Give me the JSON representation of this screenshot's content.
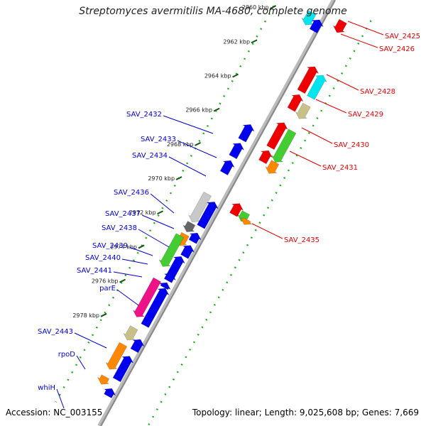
{
  "title": "Streptomyces avermitilis MA-4680, complete genome",
  "accession": "Accession: NC_003155",
  "summary": "Topology: linear; Length: 9,025,608 bp; Genes: 7,669",
  "ticks": [
    "2960 kbp",
    "2962 kbp",
    "2964 kbp",
    "2966 kbp",
    "2968 kbp",
    "2970 kbp",
    "2972 kbp",
    "2974 kbp",
    "2976 kbp",
    "2978 kbp"
  ],
  "labels_left": [
    "SAV_2432",
    "SAV_2433",
    "SAV_2434",
    "SAV_2436",
    "SAV_2437",
    "SAV_2438",
    "SAV_2439",
    "SAV_2440",
    "SAV_2441",
    "parE",
    "SAV_2443",
    "rpoD",
    "whiH"
  ],
  "labels_right": [
    "SAV_2425",
    "SAV_2426",
    "SAV_2428",
    "SAV_2429",
    "SAV_2430",
    "SAV_2431",
    "SAV_2435"
  ],
  "colors": {
    "backbone": "#888888",
    "axis_dots": "#22aa22",
    "left_label": "#0000cc",
    "right_label": "#dd0000",
    "blue": "#0000ee",
    "red": "#ee0000",
    "cyan": "#00e5ee",
    "khaki": "#c8c088",
    "green": "#44cc33",
    "orange": "#ff8800",
    "magenta": "#ee1188",
    "gray": "#c8c8c8",
    "dark": "#666666"
  }
}
